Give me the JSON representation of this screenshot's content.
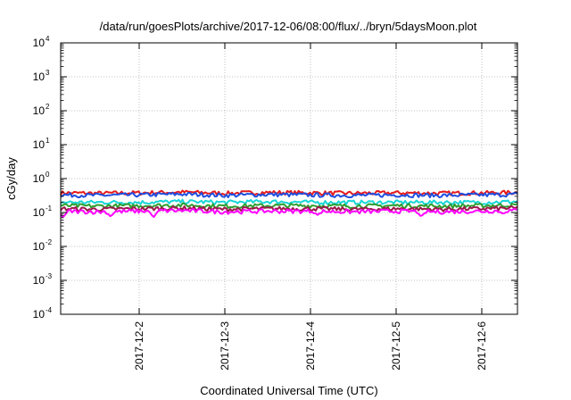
{
  "chart_data": {
    "type": "line",
    "title": "/data/run/goesPlots/archive/2017-12-06/08:00/flux/../bryn/5daysMoon.plot",
    "xlabel": "Coordinated Universal Time (UTC)",
    "ylabel": "cGy/day",
    "yscale": "log",
    "ylim": [
      0.0001,
      10000
    ],
    "xlim": [
      "2017-12-01T02:00",
      "2017-12-06T10:00"
    ],
    "grid": true,
    "x_ticks": [
      "2017-12-2",
      "2017-12-3",
      "2017-12-4",
      "2017-12-5",
      "2017-12-6"
    ],
    "y_ticks": [
      {
        "base": "10",
        "exp": "4"
      },
      {
        "base": "10",
        "exp": "3"
      },
      {
        "base": "10",
        "exp": "2"
      },
      {
        "base": "10",
        "exp": "1"
      },
      {
        "base": "10",
        "exp": "0"
      },
      {
        "base": "10",
        "exp": "-1"
      },
      {
        "base": "10",
        "exp": "-2"
      },
      {
        "base": "10",
        "exp": "-3"
      },
      {
        "base": "10",
        "exp": "-4"
      }
    ],
    "x": [
      "2017-12-01T02:00",
      "2017-12-01T12:00",
      "2017-12-02T00:00",
      "2017-12-02T12:00",
      "2017-12-03T00:00",
      "2017-12-03T12:00",
      "2017-12-04T00:00",
      "2017-12-04T12:00",
      "2017-12-05T00:00",
      "2017-12-05T12:00",
      "2017-12-06T00:00",
      "2017-12-06T10:00"
    ],
    "series": [
      {
        "color": "#e41a1c",
        "values": [
          0.38,
          0.37,
          0.38,
          0.4,
          0.37,
          0.39,
          0.38,
          0.37,
          0.38,
          0.37,
          0.38,
          0.39
        ]
      },
      {
        "color": "#1f4fe0",
        "values": [
          0.33,
          0.32,
          0.33,
          0.35,
          0.32,
          0.34,
          0.33,
          0.32,
          0.33,
          0.32,
          0.33,
          0.34
        ]
      },
      {
        "color": "#17d6d6",
        "values": [
          0.2,
          0.2,
          0.2,
          0.21,
          0.2,
          0.21,
          0.2,
          0.2,
          0.2,
          0.2,
          0.2,
          0.21
        ]
      },
      {
        "color": "#2e9e2e",
        "values": [
          0.16,
          0.155,
          0.16,
          0.165,
          0.155,
          0.16,
          0.16,
          0.155,
          0.16,
          0.155,
          0.16,
          0.165
        ]
      },
      {
        "color": "#9b1a4a",
        "values": [
          0.13,
          0.125,
          0.13,
          0.135,
          0.125,
          0.13,
          0.13,
          0.125,
          0.13,
          0.125,
          0.13,
          0.135
        ]
      },
      {
        "color": "#ff00ff",
        "values": [
          0.11,
          0.105,
          0.11,
          0.115,
          0.105,
          0.11,
          0.11,
          0.105,
          0.11,
          0.105,
          0.11,
          0.115
        ]
      }
    ],
    "dips": [
      {
        "x": "2017-12-01T02:40",
        "series": 5,
        "value": 0.07
      },
      {
        "x": "2017-12-01T16:00",
        "series": 5,
        "value": 0.075
      },
      {
        "x": "2017-12-02T04:00",
        "series": 5,
        "value": 0.07
      },
      {
        "x": "2017-12-04T02:00",
        "series": 5,
        "value": 0.085
      },
      {
        "x": "2017-12-05T07:00",
        "series": 5,
        "value": 0.075
      },
      {
        "x": "2017-12-06T06:00",
        "series": 5,
        "value": 0.09
      }
    ]
  }
}
